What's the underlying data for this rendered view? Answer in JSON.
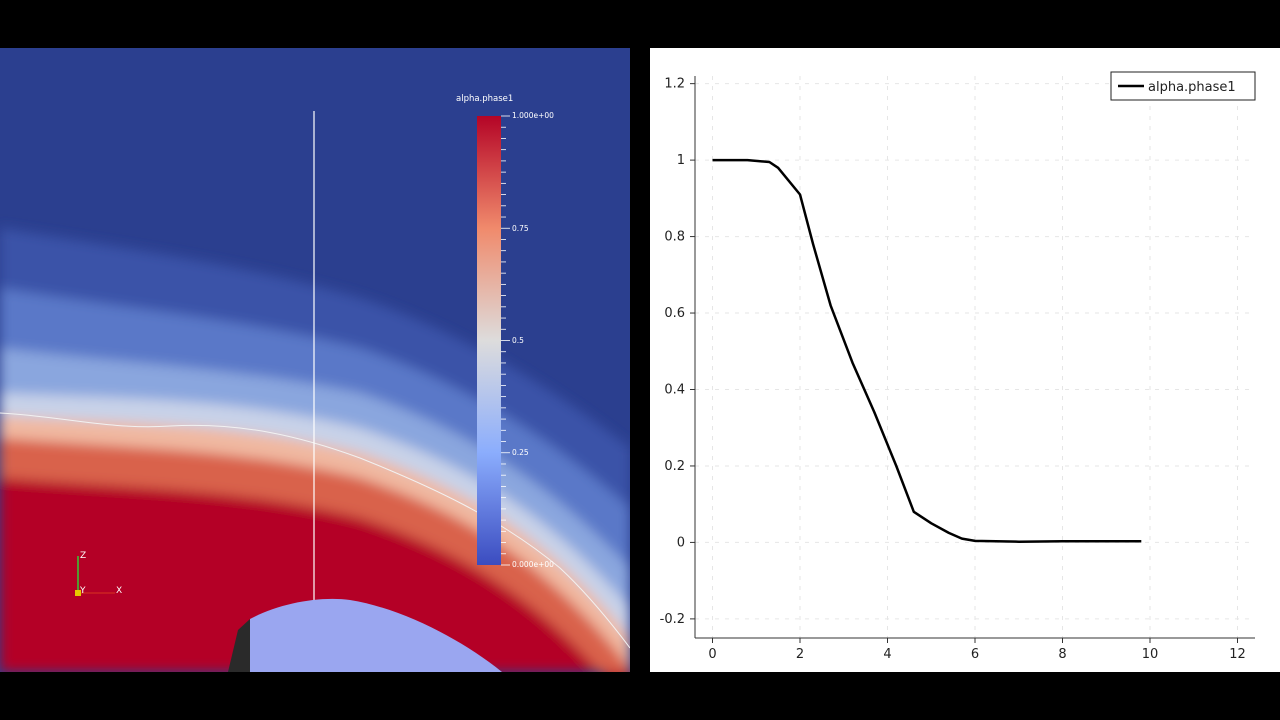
{
  "render_view": {
    "colorbar": {
      "title": "alpha.phase1",
      "ticks": [
        "1.000e+00",
        "0.75",
        "0.5",
        "0.25",
        "0.000e+00"
      ]
    },
    "orientation_axes": {
      "z_label": "Z",
      "y_label": "Y",
      "x_label": "X"
    },
    "colors": {
      "low": "#3b4cc0",
      "high": "#b40426",
      "background_field": "#2b3f8f",
      "body": "#9aa6f0"
    }
  },
  "plot_view": {
    "legend": "alpha.phase1"
  },
  "chart_data": {
    "type": "line",
    "title": "",
    "xlabel": "",
    "ylabel": "",
    "xlim": [
      -0.4,
      12.4
    ],
    "ylim": [
      -0.25,
      1.22
    ],
    "x_ticks": [
      0,
      2,
      4,
      6,
      8,
      10,
      12
    ],
    "y_ticks": [
      -0.2,
      0,
      0.2,
      0.4,
      0.6,
      0.8,
      1,
      1.2
    ],
    "y_tick_labels": [
      "-0.2",
      "0",
      "0.2",
      "0.4",
      "0.6",
      "0.8",
      "1",
      "1.2"
    ],
    "grid": true,
    "legend_position": "top-right",
    "series": [
      {
        "name": "alpha.phase1",
        "color": "#000000",
        "x": [
          0.0,
          0.8,
          1.3,
          1.5,
          2.0,
          2.3,
          2.7,
          3.2,
          3.7,
          4.2,
          4.6,
          5.0,
          5.4,
          5.7,
          6.0,
          7.0,
          8.0,
          9.0,
          9.8
        ],
        "y": [
          1.0,
          1.0,
          0.995,
          0.98,
          0.91,
          0.78,
          0.62,
          0.47,
          0.34,
          0.2,
          0.08,
          0.05,
          0.025,
          0.01,
          0.004,
          0.002,
          0.003,
          0.003,
          0.003
        ]
      }
    ]
  }
}
